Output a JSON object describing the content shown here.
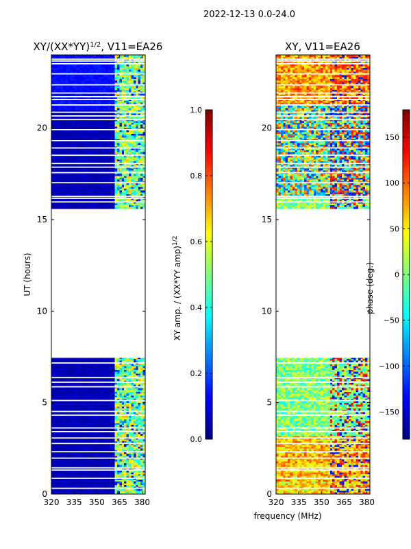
{
  "suptitle": "2022-12-13 0.0-24.0",
  "shared_xlabel": "frequency (MHz)",
  "colormap": [
    "#00007f",
    "#0000ff",
    "#007fff",
    "#00ffff",
    "#7fff7f",
    "#ffff00",
    "#ff7f00",
    "#ff0000",
    "#7f0000"
  ],
  "chart_data": [
    {
      "type": "heatmap",
      "title_main": "XY/(XX*YY)",
      "title_sup": "1/2",
      "title_rest": ", V11=EA26",
      "ylabel": "UT (hours)",
      "xlim": [
        320,
        382
      ],
      "ylim": [
        0,
        24
      ],
      "x_ticks": [
        320,
        335,
        350,
        365,
        380
      ],
      "y_ticks": [
        0,
        5,
        10,
        15,
        20
      ],
      "data_ranges_hours": [
        [
          0,
          7.45
        ],
        [
          15.6,
          24
        ]
      ],
      "gap_rows_hours": [
        0.3,
        0.85,
        1.3,
        1.42,
        1.95,
        2.3,
        2.75,
        3.05,
        3.4,
        3.6,
        4.3,
        4.5,
        5.1,
        5.85,
        6.1,
        6.35,
        7.15,
        15.95,
        16.15,
        16.25,
        17.0,
        17.55,
        17.85,
        18.05,
        18.5,
        18.9,
        19.3,
        19.9,
        20.45,
        20.65,
        20.85,
        21.25,
        21.55,
        21.7,
        21.9,
        22.35,
        22.95,
        23.5,
        23.65,
        23.75
      ],
      "colorbar": {
        "label_main": "XY amp. / (XX*YY amp)",
        "label_sup": "1/2",
        "min": 0.0,
        "max": 1.0,
        "ticks": [
          0.0,
          0.2,
          0.4,
          0.6,
          0.8,
          1.0
        ],
        "tick_labels": [
          "0.0",
          "0.2",
          "0.4",
          "0.6",
          "0.8",
          "1.0"
        ]
      }
    },
    {
      "type": "heatmap",
      "title_main": "XY, V11=EA26",
      "title_sup": "",
      "title_rest": "",
      "ylabel": "",
      "xlim": [
        320,
        382
      ],
      "ylim": [
        0,
        24
      ],
      "x_ticks": [
        320,
        335,
        350,
        365,
        380
      ],
      "y_ticks": [
        0,
        5,
        10,
        15,
        20
      ],
      "data_ranges_hours": [
        [
          0,
          7.45
        ],
        [
          15.6,
          24
        ]
      ],
      "gap_rows_hours": [
        0.3,
        0.85,
        1.3,
        1.42,
        1.95,
        2.3,
        2.75,
        3.05,
        3.4,
        3.6,
        4.3,
        4.5,
        5.1,
        5.85,
        6.1,
        6.35,
        7.15,
        15.95,
        16.15,
        16.25,
        17.0,
        17.55,
        17.85,
        18.05,
        18.5,
        18.9,
        19.3,
        19.9,
        20.45,
        20.65,
        20.85,
        21.25,
        21.55,
        21.7,
        21.9,
        22.35,
        22.95,
        23.5,
        23.65,
        23.75
      ],
      "colorbar": {
        "label_main": "phase (deg.)",
        "label_sup": "",
        "min": -180,
        "max": 180,
        "ticks": [
          -150,
          -100,
          -50,
          0,
          50,
          100,
          150
        ],
        "tick_labels": [
          "−150",
          "−100",
          "−50",
          "0",
          "50",
          "100",
          "150"
        ]
      }
    }
  ]
}
